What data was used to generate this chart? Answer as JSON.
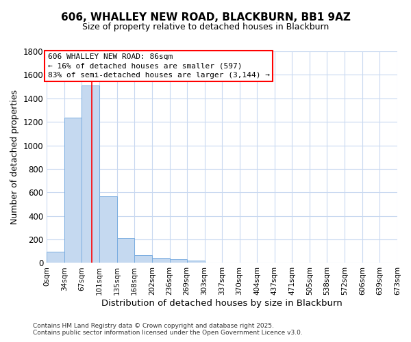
{
  "title": "606, WHALLEY NEW ROAD, BLACKBURN, BB1 9AZ",
  "subtitle": "Size of property relative to detached houses in Blackburn",
  "xlabel": "Distribution of detached houses by size in Blackburn",
  "ylabel": "Number of detached properties",
  "bar_values": [
    95,
    1235,
    1510,
    565,
    210,
    65,
    45,
    30,
    20,
    5,
    0,
    0,
    0,
    0,
    0,
    0,
    0,
    0,
    0,
    0
  ],
  "bin_edges": [
    0,
    34,
    67,
    101,
    135,
    168,
    202,
    236,
    269,
    303,
    337,
    370,
    404,
    437,
    471,
    505,
    538,
    572,
    606,
    639,
    673
  ],
  "tick_labels": [
    "0sqm",
    "34sqm",
    "67sqm",
    "101sqm",
    "135sqm",
    "168sqm",
    "202sqm",
    "236sqm",
    "269sqm",
    "303sqm",
    "337sqm",
    "370sqm",
    "404sqm",
    "437sqm",
    "471sqm",
    "505sqm",
    "538sqm",
    "572sqm",
    "606sqm",
    "639sqm",
    "673sqm"
  ],
  "bar_color": "#c5d9f0",
  "bar_edge_color": "#7aade0",
  "red_line_x": 86,
  "ylim": [
    0,
    1800
  ],
  "yticks": [
    0,
    200,
    400,
    600,
    800,
    1000,
    1200,
    1400,
    1600,
    1800
  ],
  "annotation_title": "606 WHALLEY NEW ROAD: 86sqm",
  "annotation_line1": "← 16% of detached houses are smaller (597)",
  "annotation_line2": "83% of semi-detached houses are larger (3,144) →",
  "footer1": "Contains HM Land Registry data © Crown copyright and database right 2025.",
  "footer2": "Contains public sector information licensed under the Open Government Licence v3.0.",
  "bg_color": "#ffffff",
  "grid_color": "#c8d8f0",
  "title_fontsize": 11,
  "subtitle_fontsize": 9
}
